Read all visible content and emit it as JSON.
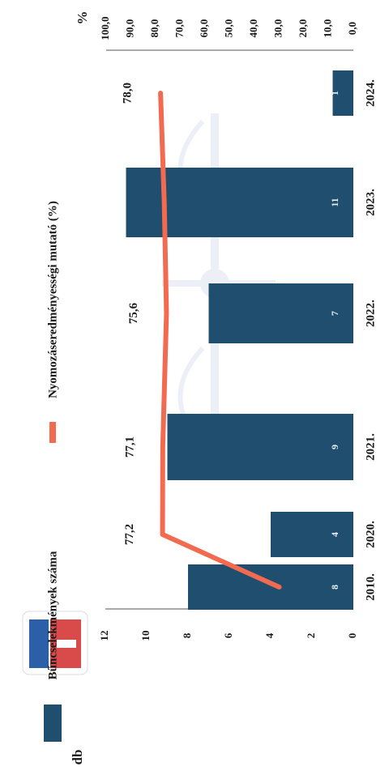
{
  "chart_data": {
    "type": "bar",
    "orientation": "rotated-90",
    "categories": [
      "2010.",
      "2020.",
      "2021.",
      "2022.",
      "2023.",
      "2024."
    ],
    "series": [
      {
        "name": "Bűncselekmények száma",
        "type": "bar",
        "axis": "left",
        "values": [
          8,
          4,
          9,
          7,
          11,
          1
        ],
        "value_labels": [
          "8",
          "4",
          "9",
          "7",
          "11",
          "1"
        ],
        "color": "#1f4e6e"
      },
      {
        "name": "Nyomozáseredményességi mutató (%)",
        "type": "line",
        "axis": "right",
        "values": [
          30,
          77.2,
          77.1,
          75.6,
          76.5,
          78.0
        ],
        "value_labels": [
          "",
          "77,2",
          "77,1",
          "75,6",
          "",
          "78,0"
        ],
        "color": "#f26a4f"
      }
    ],
    "left_axis": {
      "unit": "db",
      "range": [
        0,
        12
      ],
      "ticks": [
        "0",
        "2",
        "4",
        "6",
        "8",
        "10",
        "12"
      ]
    },
    "right_axis": {
      "unit": "%",
      "range": [
        0,
        100
      ],
      "ticks": [
        "0,0",
        "10,0",
        "20,0",
        "30,0",
        "40,0",
        "50,0",
        "60,0",
        "70,0",
        "80,0",
        "90,0",
        "100,0"
      ]
    },
    "legend_position": "top",
    "grid": false
  },
  "colors": {
    "bar": "#1f4e6e",
    "line": "#f26a4f",
    "axis": "#555555",
    "watermark": "#c9d3e6"
  }
}
